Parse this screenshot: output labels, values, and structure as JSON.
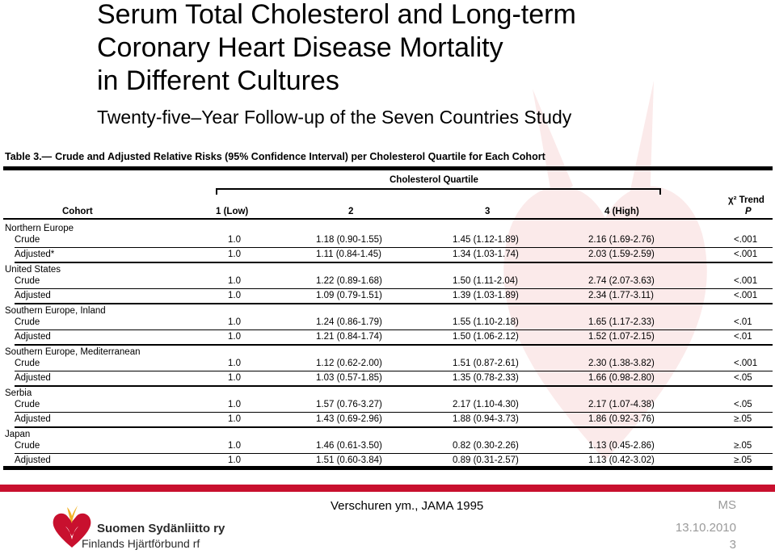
{
  "slide": {
    "title_lines": [
      "Serum Total Cholesterol and Long-term",
      "Coronary Heart Disease Mortality",
      "in Different Cultures"
    ],
    "subtitle": "Twenty-five–Year Follow-up of the Seven Countries Study"
  },
  "table": {
    "number": "Table 3.—",
    "caption": "Crude and Adjusted Relative Risks (95% Confidence Interval) per Cholesterol Quartile for Each Cohort",
    "spanner": "Cholesterol Quartile",
    "headers": {
      "cohort": "Cohort",
      "q1": "1 (Low)",
      "q2": "2",
      "q3": "3",
      "q4": "4 (High)",
      "trend": "χ² Trend",
      "p": "P"
    },
    "groups": [
      {
        "name": "Northern Europe",
        "rows": [
          {
            "label": "Crude",
            "q1": "1.0",
            "q2": "1.18 (0.90-1.55)",
            "q3": "1.45 (1.12-1.89)",
            "q4": "2.16 (1.69-2.76)",
            "p": "<.001"
          },
          {
            "label": "Adjusted*",
            "q1": "1.0",
            "q2": "1.11 (0.84-1.45)",
            "q3": "1.34 (1.03-1.74)",
            "q4": "2.03 (1.59-2.59)",
            "p": "<.001"
          }
        ]
      },
      {
        "name": "United States",
        "rows": [
          {
            "label": "Crude",
            "q1": "1.0",
            "q2": "1.22 (0.89-1.68)",
            "q3": "1.50 (1.11-2.04)",
            "q4": "2.74 (2.07-3.63)",
            "p": "<.001"
          },
          {
            "label": "Adjusted",
            "q1": "1.0",
            "q2": "1.09 (0.79-1.51)",
            "q3": "1.39 (1.03-1.89)",
            "q4": "2.34 (1.77-3.11)",
            "p": "<.001"
          }
        ]
      },
      {
        "name": "Southern Europe, Inland",
        "rows": [
          {
            "label": "Crude",
            "q1": "1.0",
            "q2": "1.24 (0.86-1.79)",
            "q3": "1.55 (1.10-2.18)",
            "q4": "1.65 (1.17-2.33)",
            "p": "<.01"
          },
          {
            "label": "Adjusted",
            "q1": "1.0",
            "q2": "1.21 (0.84-1.74)",
            "q3": "1.50 (1.06-2.12)",
            "q4": "1.52 (1.07-2.15)",
            "p": "<.01"
          }
        ]
      },
      {
        "name": "Southern Europe, Mediterranean",
        "rows": [
          {
            "label": "Crude",
            "q1": "1.0",
            "q2": "1.12 (0.62-2.00)",
            "q3": "1.51 (0.87-2.61)",
            "q4": "2.30 (1.38-3.82)",
            "p": "<.001"
          },
          {
            "label": "Adjusted",
            "q1": "1.0",
            "q2": "1.03 (0.57-1.85)",
            "q3": "1.35 (0.78-2.33)",
            "q4": "1.66 (0.98-2.80)",
            "p": "<.05"
          }
        ]
      },
      {
        "name": "Serbia",
        "rows": [
          {
            "label": "Crude",
            "q1": "1.0",
            "q2": "1.57 (0.76-3.27)",
            "q3": "2.17 (1.10-4.30)",
            "q4": "2.17 (1.07-4.38)",
            "p": "<.05"
          },
          {
            "label": "Adjusted",
            "q1": "1.0",
            "q2": "1.43 (0.69-2.96)",
            "q3": "1.88 (0.94-3.73)",
            "q4": "1.86 (0.92-3.76)",
            "p": "≥.05"
          }
        ]
      },
      {
        "name": "Japan",
        "rows": [
          {
            "label": "Crude",
            "q1": "1.0",
            "q2": "1.46 (0.61-3.50)",
            "q3": "0.82 (0.30-2.26)",
            "q4": "1.13 (0.45-2.86)",
            "p": "≥.05"
          },
          {
            "label": "Adjusted",
            "q1": "1.0",
            "q2": "1.51 (0.60-3.84)",
            "q3": "0.89 (0.31-2.57)",
            "q4": "1.13 (0.42-3.02)",
            "p": "≥.05"
          }
        ]
      }
    ]
  },
  "footer": {
    "source": "Verschuren ym., JAMA 1995",
    "initials": "MS",
    "date": "13.10.2010",
    "page": "3",
    "logo_line1": "Suomen Sydänliitto ry",
    "logo_line2": "Finlands Hjärtförbund rf"
  },
  "colors": {
    "accent_red": "#c8102e",
    "watermark": "#f6dada",
    "footer_gray": "#9a9a9a"
  }
}
